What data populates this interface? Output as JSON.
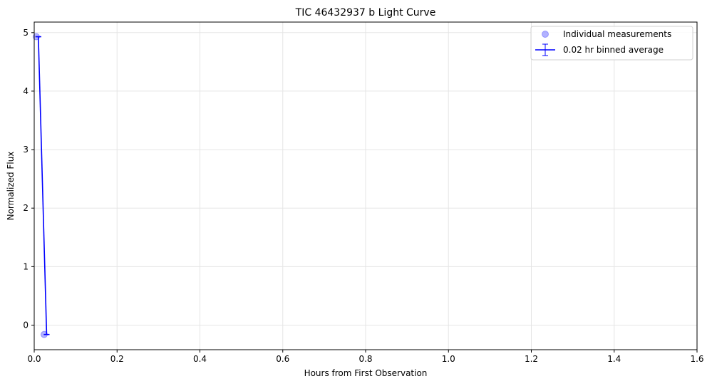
{
  "chart_data": {
    "type": "scatter",
    "title": "TIC 46432937 b Light Curve",
    "xlabel": "Hours from First Observation",
    "ylabel": "Normalized Flux",
    "xlim": [
      0,
      1.6
    ],
    "ylim": [
      -0.42,
      5.18
    ],
    "x_ticks": [
      {
        "value": 0,
        "label": "0.0"
      },
      {
        "value": 0.2,
        "label": "0.2"
      },
      {
        "value": 0.4,
        "label": "0.4"
      },
      {
        "value": 0.6,
        "label": "0.6"
      },
      {
        "value": 0.8,
        "label": "0.8"
      },
      {
        "value": 1.0,
        "label": "1.0"
      },
      {
        "value": 1.2,
        "label": "1.2"
      },
      {
        "value": 1.4,
        "label": "1.4"
      },
      {
        "value": 1.6,
        "label": "1.6"
      }
    ],
    "y_ticks": [
      {
        "value": 0,
        "label": "0"
      },
      {
        "value": 1,
        "label": "1"
      },
      {
        "value": 2,
        "label": "2"
      },
      {
        "value": 3,
        "label": "3"
      },
      {
        "value": 4,
        "label": "4"
      },
      {
        "value": 5,
        "label": "5"
      }
    ],
    "grid": true,
    "legend_position": "top-right",
    "series": [
      {
        "name": "Individual measurements",
        "kind": "points",
        "color": "#0000ff",
        "opacity": 0.3,
        "x": [
          0.005,
          0.024
        ],
        "y": [
          4.93,
          -0.16
        ]
      },
      {
        "name": "0.02 hr binned average",
        "kind": "errorbar-line",
        "color": "#0000ff",
        "x": [
          0.01,
          0.03
        ],
        "y": [
          4.93,
          -0.16
        ],
        "yerr": [
          0.0,
          0.0
        ]
      }
    ]
  }
}
